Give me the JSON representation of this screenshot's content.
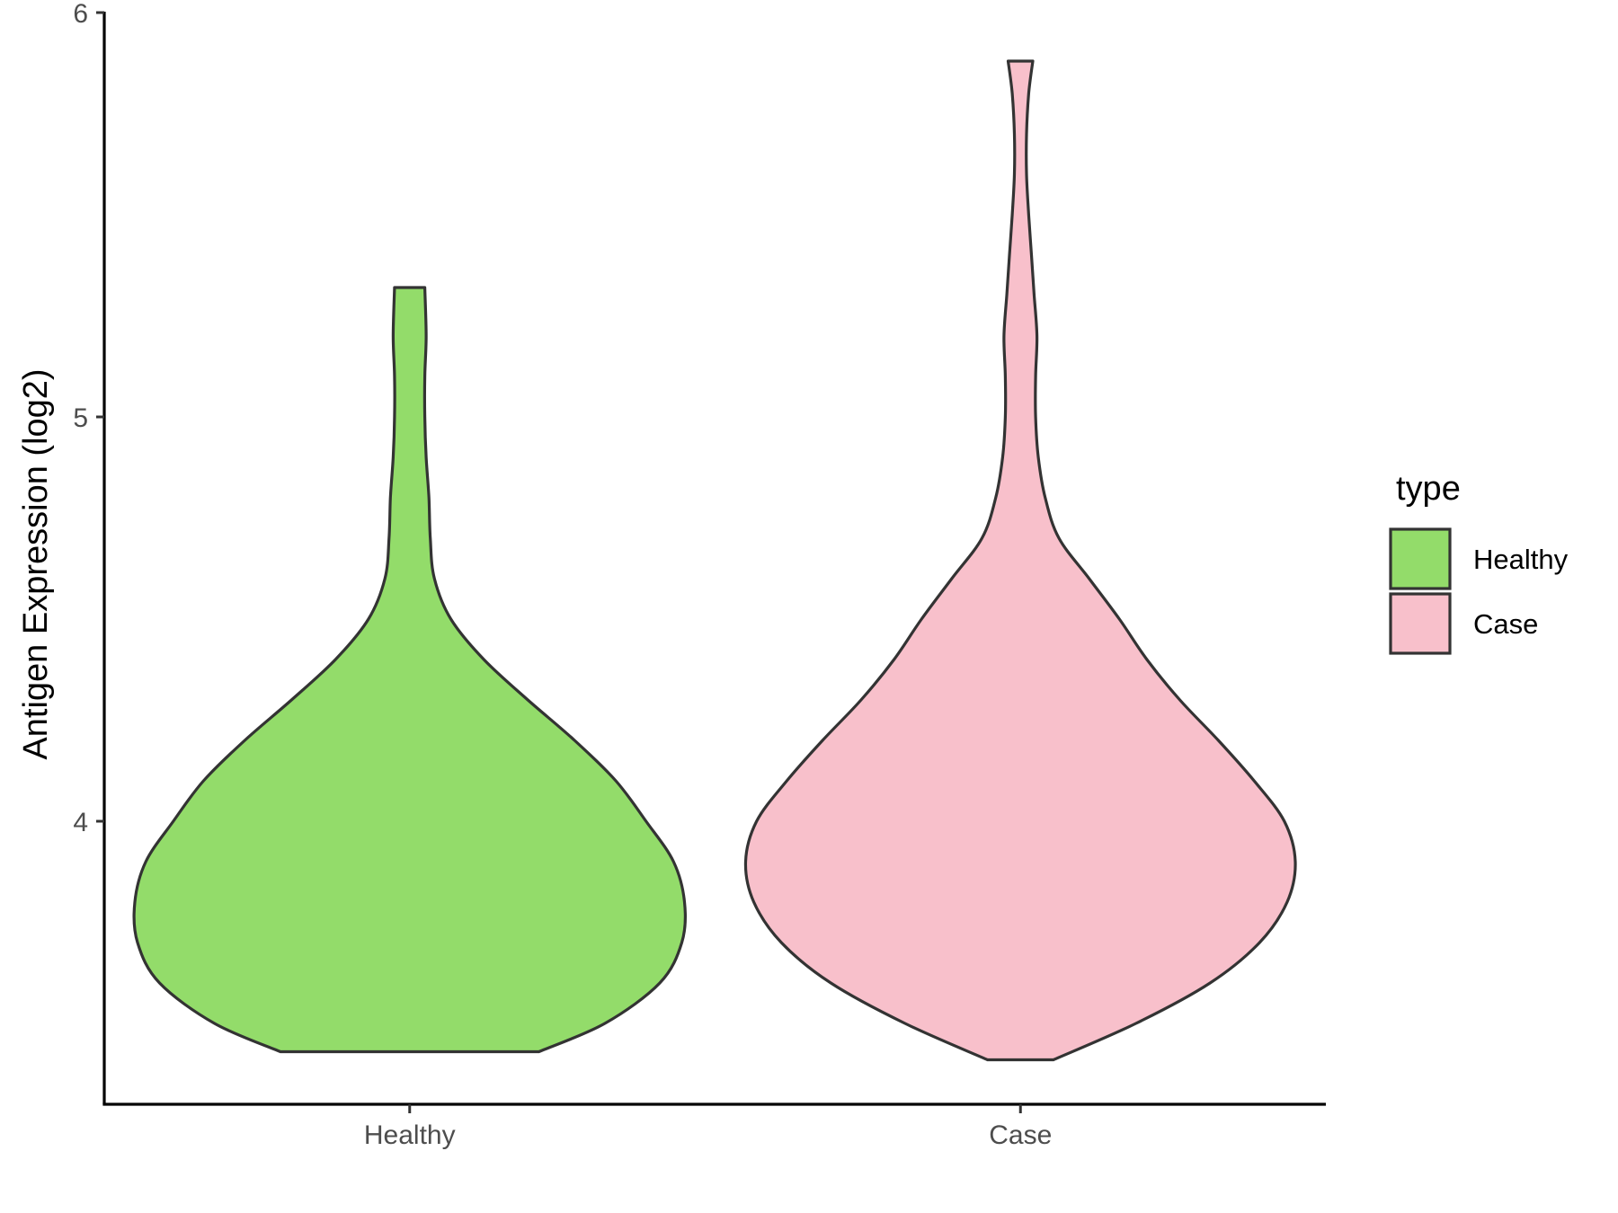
{
  "chart_data": {
    "type": "violin",
    "title": "",
    "xlabel": "",
    "ylabel": "Antigen Expression (log2)",
    "ylim": [
      3.3,
      6.0
    ],
    "y_ticks": [
      4,
      5,
      6
    ],
    "categories": [
      "Healthy",
      "Case"
    ],
    "grid": false,
    "legend": {
      "title": "type",
      "position": "right",
      "entries": [
        "Healthy",
        "Case"
      ]
    },
    "series": [
      {
        "category": "Healthy",
        "color": "#93DC6A",
        "y_min": 3.43,
        "y_max": 5.32,
        "profile": [
          [
            3.43,
            0.47
          ],
          [
            3.5,
            0.71
          ],
          [
            3.6,
            0.91
          ],
          [
            3.7,
            0.99
          ],
          [
            3.8,
            1.0
          ],
          [
            3.9,
            0.96
          ],
          [
            4.0,
            0.86
          ],
          [
            4.1,
            0.75
          ],
          [
            4.2,
            0.6
          ],
          [
            4.3,
            0.43
          ],
          [
            4.4,
            0.27
          ],
          [
            4.5,
            0.15
          ],
          [
            4.6,
            0.09
          ],
          [
            4.7,
            0.075
          ],
          [
            4.8,
            0.07
          ],
          [
            4.9,
            0.06
          ],
          [
            5.0,
            0.055
          ],
          [
            5.1,
            0.055
          ],
          [
            5.2,
            0.06
          ],
          [
            5.32,
            0.055
          ]
        ]
      },
      {
        "category": "Case",
        "color": "#F8C0CB",
        "y_min": 3.41,
        "y_max": 5.88,
        "profile": [
          [
            3.41,
            0.12
          ],
          [
            3.5,
            0.42
          ],
          [
            3.6,
            0.69
          ],
          [
            3.7,
            0.87
          ],
          [
            3.8,
            0.97
          ],
          [
            3.9,
            1.0
          ],
          [
            4.0,
            0.96
          ],
          [
            4.1,
            0.85
          ],
          [
            4.2,
            0.72
          ],
          [
            4.3,
            0.58
          ],
          [
            4.4,
            0.46
          ],
          [
            4.5,
            0.36
          ],
          [
            4.6,
            0.25
          ],
          [
            4.7,
            0.14
          ],
          [
            4.8,
            0.09
          ],
          [
            4.9,
            0.065
          ],
          [
            5.0,
            0.055
          ],
          [
            5.1,
            0.055
          ],
          [
            5.2,
            0.06
          ],
          [
            5.3,
            0.05
          ],
          [
            5.4,
            0.04
          ],
          [
            5.5,
            0.03
          ],
          [
            5.6,
            0.022
          ],
          [
            5.7,
            0.022
          ],
          [
            5.8,
            0.03
          ],
          [
            5.88,
            0.045
          ]
        ]
      }
    ]
  }
}
